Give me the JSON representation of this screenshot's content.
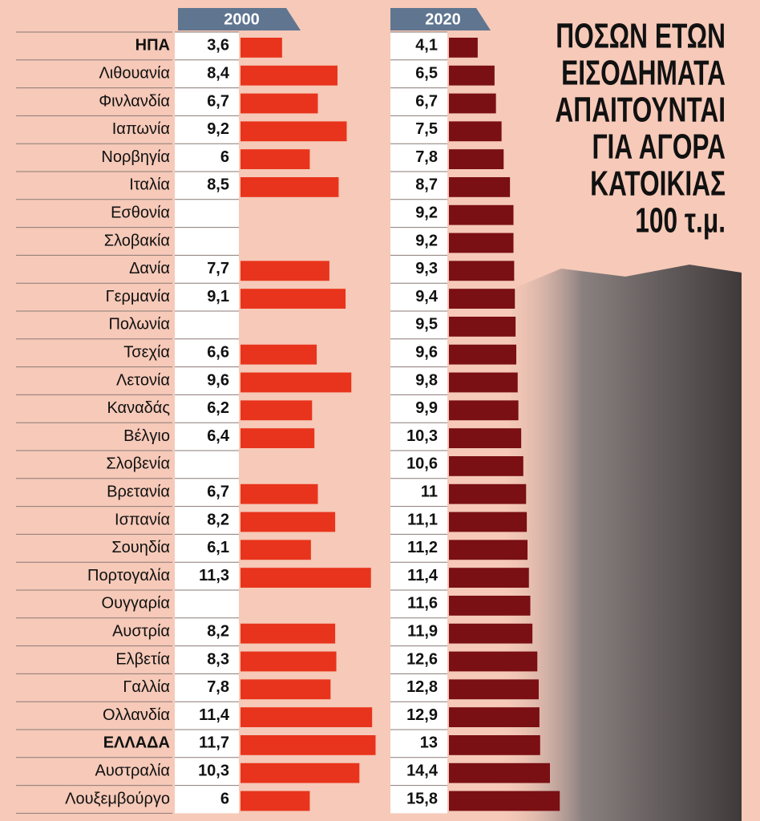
{
  "chart_data": {
    "type": "bar",
    "title": [
      "ΠΟΣΩΝ ΕΤΩΝ",
      "ΕΙΣΟΔΗΜΑΤΑ",
      "ΑΠΑΙΤΟΥΝΤΑΙ",
      "ΓΙΑ ΑΓΟΡΑ",
      "ΚΑΤΟΙΚΙΑΣ",
      "100 τ.μ."
    ],
    "categories": [
      "ΗΠΑ",
      "Λιθουανία",
      "Φινλανδία",
      "Ιαπωνία",
      "Νορβηγία",
      "Ιταλία",
      "Εσθονία",
      "Σλοβακία",
      "Δανία",
      "Γερμανία",
      "Πολωνία",
      "Τσεχία",
      "Λετονία",
      "Καναδάς",
      "Βέλγιο",
      "Σλοβενία",
      "Βρετανία",
      "Ισπανία",
      "Σουηδία",
      "Πορτογαλία",
      "Ουγγαρία",
      "Αυστρία",
      "Ελβετία",
      "Γαλλία",
      "Ολλανδία",
      "ΕΛΛΑΔΑ",
      "Αυστραλία",
      "Λουξεμβούργο"
    ],
    "series": [
      {
        "name": "2000",
        "color": "#e8341c",
        "values": [
          3.6,
          8.4,
          6.7,
          9.2,
          6,
          8.5,
          null,
          null,
          7.7,
          9.1,
          null,
          6.6,
          9.6,
          6.2,
          6.4,
          null,
          6.7,
          8.2,
          6.1,
          11.3,
          null,
          8.2,
          8.3,
          7.8,
          11.4,
          11.7,
          10.3,
          6
        ],
        "value_labels": [
          "3,6",
          "8,4",
          "6,7",
          "9,2",
          "6",
          "8,5",
          null,
          null,
          "7,7",
          "9,1",
          null,
          "6,6",
          "9,6",
          "6,2",
          "6,4",
          null,
          "6,7",
          "8,2",
          "6,1",
          "11,3",
          null,
          "8,2",
          "8,3",
          "7,8",
          "11,4",
          "11,7",
          "10,3",
          "6"
        ]
      },
      {
        "name": "2020",
        "color": "#7a0f14",
        "values": [
          4.1,
          6.5,
          6.7,
          7.5,
          7.8,
          8.7,
          9.2,
          9.2,
          9.3,
          9.4,
          9.5,
          9.6,
          9.8,
          9.9,
          10.3,
          10.6,
          11,
          11.1,
          11.2,
          11.4,
          11.6,
          11.9,
          12.6,
          12.8,
          12.9,
          13,
          14.4,
          15.8
        ],
        "value_labels": [
          "4,1",
          "6,5",
          "6,7",
          "7,5",
          "7,8",
          "8,7",
          "9,2",
          "9,2",
          "9,3",
          "9,4",
          "9,5",
          "9,6",
          "9,8",
          "9,9",
          "10,3",
          "10,6",
          "11",
          "11,1",
          "11,2",
          "11,4",
          "11,6",
          "11,9",
          "12,6",
          "12,8",
          "12,9",
          "13",
          "14,4",
          "15,8"
        ]
      }
    ]
  }
}
